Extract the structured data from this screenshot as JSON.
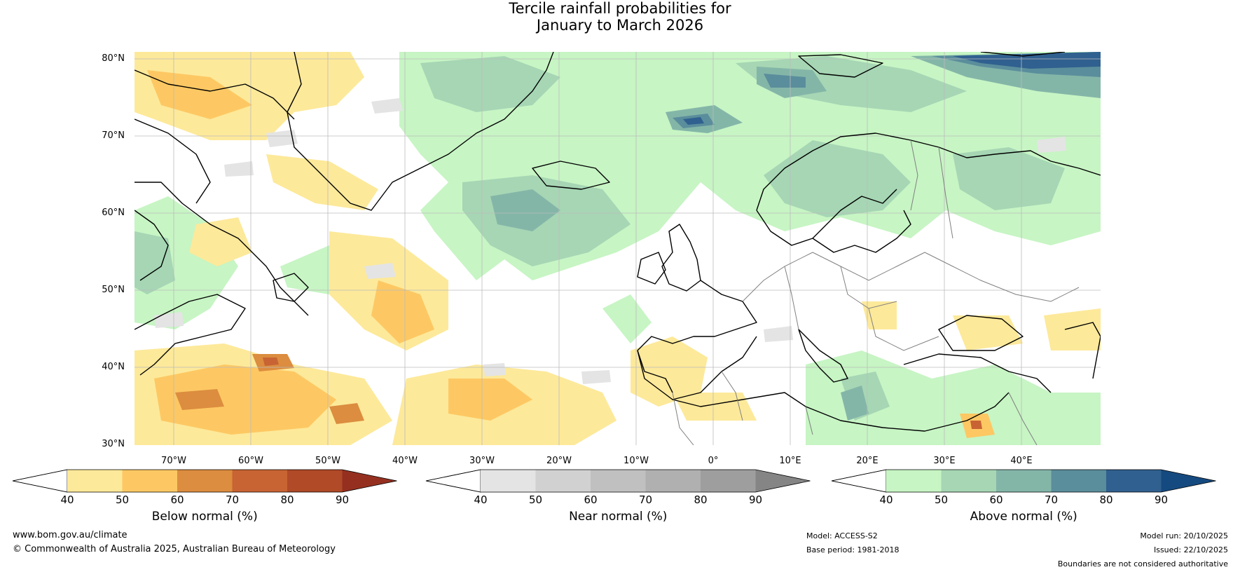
{
  "title": {
    "line1": "Tercile rainfall probabilities for",
    "line2": "January to March 2026"
  },
  "map": {
    "lat_labels": [
      "80°N",
      "70°N",
      "60°N",
      "50°N",
      "40°N",
      "30°N"
    ],
    "lon_labels": [
      "70°W",
      "60°W",
      "50°W",
      "40°W",
      "30°W",
      "20°W",
      "10°W",
      "0°",
      "10°E",
      "20°E",
      "30°E",
      "40°E"
    ],
    "colors": {
      "above": [
        "#c7f5c4",
        "#a6d6b4",
        "#84b6a8",
        "#5b8e9c",
        "#30608f",
        "#154a80"
      ],
      "below": [
        "#fde99a",
        "#fdc863",
        "#dc8d3f",
        "#c86433",
        "#b04a27",
        "#953020"
      ],
      "near": [
        "#e4e4e4",
        "#d1d1d1",
        "#c0c0c0",
        "#b0b0b0",
        "#9e9e9e",
        "#858585"
      ],
      "land_line": "#000000",
      "border_line": "#808080",
      "grid": "#bbbbbb"
    }
  },
  "colorbars": [
    {
      "name": "below",
      "title": "Below normal (%)",
      "ticks": [
        "40",
        "50",
        "60",
        "70",
        "80",
        "90"
      ]
    },
    {
      "name": "near",
      "title": "Near normal (%)",
      "ticks": [
        "40",
        "50",
        "60",
        "70",
        "80",
        "90"
      ]
    },
    {
      "name": "above",
      "title": "Above normal (%)",
      "ticks": [
        "40",
        "50",
        "60",
        "70",
        "80",
        "90"
      ]
    }
  ],
  "footer": {
    "website": "www.bom.gov.au/climate",
    "copyright": "© Commonwealth of Australia 2025, Australian Bureau of Meteorology",
    "model": "Model: ACCESS-S2",
    "base_period": "Base period: 1981-2018",
    "model_run": "Model run: 20/10/2025",
    "issued": "Issued: 22/10/2025",
    "disclaimer": "Boundaries are not considered authoritative"
  }
}
